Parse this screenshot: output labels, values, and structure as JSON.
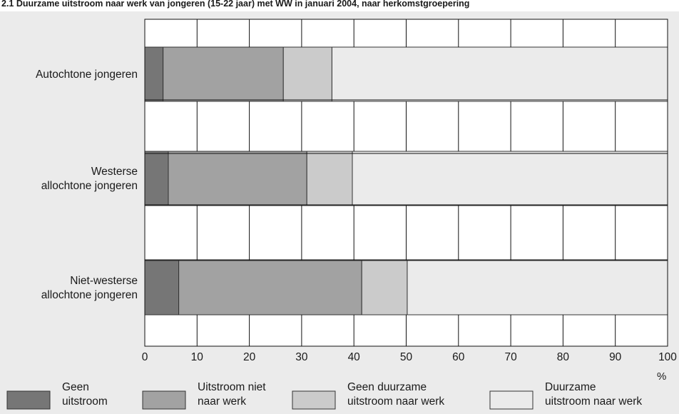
{
  "chart_data": {
    "type": "bar",
    "orientation": "horizontal",
    "stacked": true,
    "title": "2.1 Duurzame uitstroom naar werk van jongeren (15-22 jaar) met WW in januari 2004, naar herkomstgroepering",
    "categories": [
      "Autochtone jongeren",
      "Westerse allochtone jongeren",
      "Niet-westerse allochtone jongeren"
    ],
    "category_lines": [
      [
        "Autochtone jongeren"
      ],
      [
        "Westerse",
        "allochtone jongeren"
      ],
      [
        "Niet-westerse",
        "allochtone jongeren"
      ]
    ],
    "series": [
      {
        "name": "Geen uitstroom",
        "legend_lines": [
          "Geen",
          "uitstroom"
        ],
        "color": "#767676",
        "values": [
          3.5,
          4.5,
          6.5
        ]
      },
      {
        "name": "Uitstroom niet naar werk",
        "legend_lines": [
          "Uitstroom niet",
          "naar werk"
        ],
        "color": "#a2a2a2",
        "values": [
          23.0,
          26.5,
          35.0
        ]
      },
      {
        "name": "Geen duurzame uitstroom naar werk",
        "legend_lines": [
          "Geen duurzame",
          "uitstroom naar werk"
        ],
        "color": "#cbcbcb",
        "values": [
          9.3,
          8.7,
          8.7
        ]
      },
      {
        "name": "Duurzame uitstroom naar werk",
        "legend_lines": [
          "Duurzame",
          "uitstroom naar werk"
        ],
        "color": "#ebebeb",
        "values": [
          64.2,
          60.3,
          49.8
        ]
      }
    ],
    "xlim": [
      0,
      100
    ],
    "xticks": [
      0,
      10,
      20,
      30,
      40,
      50,
      60,
      70,
      80,
      90,
      100
    ],
    "xlabel": "%",
    "ylabel": "",
    "grid": true,
    "legend_position": "bottom"
  }
}
